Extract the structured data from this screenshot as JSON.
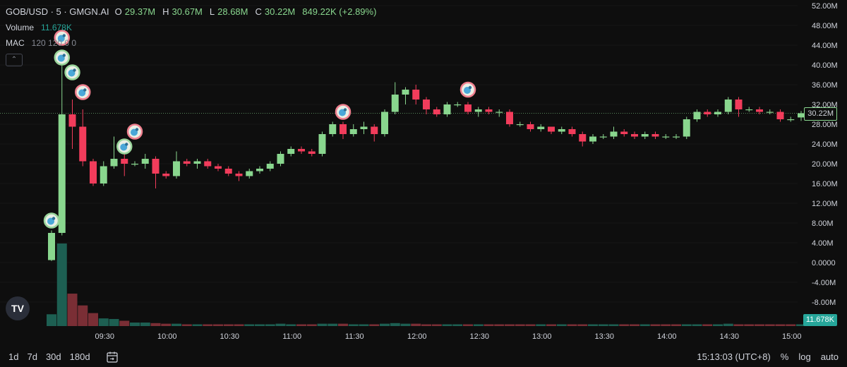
{
  "legend": {
    "symbol": "GOB/USD · 5 · GMGN.AI",
    "o_label": "O",
    "o_value": "29.37M",
    "h_label": "H",
    "h_value": "30.67M",
    "l_label": "L",
    "l_value": "28.68M",
    "c_label": "C",
    "c_value": "30.22M",
    "change": "849.22K (+2.89%)",
    "volume_label": "Volume",
    "volume_value": "11.678K",
    "mac_label": "MAC",
    "mac_value": "120 120 0 0"
  },
  "price_tags": {
    "last_price": "30.22M",
    "last_volume": "11.678K"
  },
  "bottom_bar": {
    "ranges": [
      "1d",
      "7d",
      "30d",
      "180d"
    ],
    "clock": "15:13:03 (UTC+8)",
    "percent": "%",
    "log": "log",
    "auto": "auto"
  },
  "logo_text": "TV",
  "colors": {
    "up": "#89d68e",
    "down": "#f23c5b",
    "vol_up": "#1d5f52",
    "vol_down": "#7a2e35",
    "background": "#0e0e0e"
  },
  "chart_data": {
    "type": "candlestick",
    "symbol": "GOB/USD",
    "interval_minutes": 5,
    "y_unit": "M",
    "ylim": [
      -12,
      52
    ],
    "yticks": [
      -8,
      -4,
      0,
      4,
      8,
      12,
      16,
      20,
      24,
      28,
      32,
      36,
      40,
      44,
      48,
      52
    ],
    "ytick_labels": [
      "-8.00M",
      "-4.00M",
      "0.0000",
      "4.00M",
      "8.00M",
      "12.00M",
      "16.00M",
      "20.00M",
      "24.00M",
      "28.00M",
      "32.00M",
      "36.00M",
      "40.00M",
      "44.00M",
      "48.00M",
      "52.00M"
    ],
    "xticks": [
      "09:30",
      "10:00",
      "10:30",
      "11:00",
      "11:30",
      "12:00",
      "12:30",
      "13:00",
      "13:30",
      "14:00",
      "14:30",
      "15:00"
    ],
    "xtick_index": [
      3,
      9,
      15,
      21,
      27,
      33,
      39,
      45,
      51,
      57,
      63,
      69
    ],
    "last_price_line": 30.22,
    "candles": [
      {
        "o": 0.5,
        "h": 6.5,
        "l": 0.3,
        "c": 6.0
      },
      {
        "o": 6.0,
        "h": 41.0,
        "l": 5.5,
        "c": 30.0
      },
      {
        "o": 30.0,
        "h": 33.0,
        "l": 23.0,
        "c": 27.5
      },
      {
        "o": 27.5,
        "h": 31.0,
        "l": 19.5,
        "c": 20.5
      },
      {
        "o": 20.5,
        "h": 21.0,
        "l": 15.5,
        "c": 16.0
      },
      {
        "o": 16.0,
        "h": 20.5,
        "l": 15.5,
        "c": 19.5
      },
      {
        "o": 19.5,
        "h": 25.5,
        "l": 19.0,
        "c": 21.0
      },
      {
        "o": 21.0,
        "h": 22.5,
        "l": 17.5,
        "c": 20.0
      },
      {
        "o": 20.0,
        "h": 20.5,
        "l": 19.5,
        "c": 20.0
      },
      {
        "o": 20.0,
        "h": 22.0,
        "l": 19.0,
        "c": 21.0
      },
      {
        "o": 21.0,
        "h": 21.5,
        "l": 15.0,
        "c": 18.0
      },
      {
        "o": 18.0,
        "h": 18.5,
        "l": 17.0,
        "c": 17.5
      },
      {
        "o": 17.5,
        "h": 22.5,
        "l": 17.0,
        "c": 20.5
      },
      {
        "o": 20.5,
        "h": 21.0,
        "l": 19.5,
        "c": 20.0
      },
      {
        "o": 20.0,
        "h": 21.0,
        "l": 19.0,
        "c": 20.5
      },
      {
        "o": 20.5,
        "h": 21.0,
        "l": 19.0,
        "c": 19.5
      },
      {
        "o": 19.5,
        "h": 20.0,
        "l": 18.5,
        "c": 19.0
      },
      {
        "o": 19.0,
        "h": 19.5,
        "l": 17.5,
        "c": 18.0
      },
      {
        "o": 18.0,
        "h": 18.5,
        "l": 16.5,
        "c": 17.5
      },
      {
        "o": 17.5,
        "h": 19.0,
        "l": 17.0,
        "c": 18.5
      },
      {
        "o": 18.5,
        "h": 19.5,
        "l": 18.0,
        "c": 19.0
      },
      {
        "o": 19.0,
        "h": 20.5,
        "l": 18.5,
        "c": 20.0
      },
      {
        "o": 20.0,
        "h": 22.5,
        "l": 19.5,
        "c": 22.0
      },
      {
        "o": 22.0,
        "h": 23.5,
        "l": 21.5,
        "c": 23.0
      },
      {
        "o": 23.0,
        "h": 23.5,
        "l": 22.0,
        "c": 22.5
      },
      {
        "o": 22.5,
        "h": 23.0,
        "l": 21.5,
        "c": 22.0
      },
      {
        "o": 22.0,
        "h": 26.5,
        "l": 21.5,
        "c": 26.0
      },
      {
        "o": 26.0,
        "h": 28.5,
        "l": 25.5,
        "c": 28.0
      },
      {
        "o": 28.0,
        "h": 28.5,
        "l": 25.0,
        "c": 26.0
      },
      {
        "o": 26.0,
        "h": 28.0,
        "l": 25.5,
        "c": 27.0
      },
      {
        "o": 27.0,
        "h": 28.5,
        "l": 26.0,
        "c": 27.5
      },
      {
        "o": 27.5,
        "h": 28.0,
        "l": 24.5,
        "c": 26.0
      },
      {
        "o": 26.0,
        "h": 31.0,
        "l": 25.5,
        "c": 30.5
      },
      {
        "o": 30.5,
        "h": 36.5,
        "l": 30.0,
        "c": 34.0
      },
      {
        "o": 34.0,
        "h": 35.5,
        "l": 32.0,
        "c": 35.0
      },
      {
        "o": 35.0,
        "h": 36.0,
        "l": 32.0,
        "c": 33.0
      },
      {
        "o": 33.0,
        "h": 33.5,
        "l": 30.0,
        "c": 31.0
      },
      {
        "o": 31.0,
        "h": 31.5,
        "l": 29.5,
        "c": 30.0
      },
      {
        "o": 30.0,
        "h": 32.5,
        "l": 29.5,
        "c": 32.0
      },
      {
        "o": 32.0,
        "h": 32.5,
        "l": 31.5,
        "c": 32.0
      },
      {
        "o": 32.0,
        "h": 32.5,
        "l": 30.0,
        "c": 30.5
      },
      {
        "o": 30.5,
        "h": 31.5,
        "l": 29.5,
        "c": 31.0
      },
      {
        "o": 31.0,
        "h": 31.5,
        "l": 30.0,
        "c": 30.5
      },
      {
        "o": 30.5,
        "h": 31.0,
        "l": 29.5,
        "c": 30.5
      },
      {
        "o": 30.5,
        "h": 31.0,
        "l": 27.5,
        "c": 28.0
      },
      {
        "o": 28.0,
        "h": 28.5,
        "l": 27.5,
        "c": 28.0
      },
      {
        "o": 28.0,
        "h": 28.5,
        "l": 26.5,
        "c": 27.0
      },
      {
        "o": 27.0,
        "h": 28.0,
        "l": 26.5,
        "c": 27.5
      },
      {
        "o": 27.5,
        "h": 27.5,
        "l": 26.0,
        "c": 26.5
      },
      {
        "o": 26.5,
        "h": 27.5,
        "l": 26.0,
        "c": 27.0
      },
      {
        "o": 27.0,
        "h": 27.5,
        "l": 25.5,
        "c": 26.0
      },
      {
        "o": 26.0,
        "h": 26.5,
        "l": 23.5,
        "c": 24.5
      },
      {
        "o": 24.5,
        "h": 26.0,
        "l": 24.0,
        "c": 25.5
      },
      {
        "o": 25.5,
        "h": 26.0,
        "l": 25.0,
        "c": 25.5
      },
      {
        "o": 25.5,
        "h": 27.5,
        "l": 25.0,
        "c": 26.5
      },
      {
        "o": 26.5,
        "h": 27.0,
        "l": 25.5,
        "c": 26.0
      },
      {
        "o": 26.0,
        "h": 26.5,
        "l": 25.0,
        "c": 25.5
      },
      {
        "o": 25.5,
        "h": 26.5,
        "l": 25.0,
        "c": 26.0
      },
      {
        "o": 26.0,
        "h": 26.5,
        "l": 25.0,
        "c": 25.5
      },
      {
        "o": 25.5,
        "h": 26.0,
        "l": 25.0,
        "c": 25.5
      },
      {
        "o": 25.5,
        "h": 26.0,
        "l": 25.0,
        "c": 25.5
      },
      {
        "o": 25.5,
        "h": 29.5,
        "l": 25.0,
        "c": 29.0
      },
      {
        "o": 29.0,
        "h": 31.0,
        "l": 28.5,
        "c": 30.5
      },
      {
        "o": 30.5,
        "h": 31.0,
        "l": 29.5,
        "c": 30.0
      },
      {
        "o": 30.0,
        "h": 31.0,
        "l": 29.5,
        "c": 30.5
      },
      {
        "o": 30.5,
        "h": 33.5,
        "l": 30.0,
        "c": 33.0
      },
      {
        "o": 33.0,
        "h": 33.5,
        "l": 29.5,
        "c": 31.0
      },
      {
        "o": 31.0,
        "h": 31.5,
        "l": 30.5,
        "c": 31.0
      },
      {
        "o": 31.0,
        "h": 31.5,
        "l": 30.0,
        "c": 30.5
      },
      {
        "o": 30.5,
        "h": 31.0,
        "l": 30.0,
        "c": 30.5
      },
      {
        "o": 30.5,
        "h": 31.0,
        "l": 28.5,
        "c": 29.0
      },
      {
        "o": 29.0,
        "h": 29.5,
        "l": 28.5,
        "c": 29.0
      },
      {
        "o": 29.37,
        "h": 30.67,
        "l": 28.68,
        "c": 30.22
      }
    ],
    "volume": [
      {
        "v": 2,
        "up": true
      },
      {
        "v": 14,
        "up": true
      },
      {
        "v": 5.5,
        "up": false
      },
      {
        "v": 3.5,
        "up": false
      },
      {
        "v": 2.2,
        "up": false
      },
      {
        "v": 1.3,
        "up": true
      },
      {
        "v": 1.2,
        "up": true
      },
      {
        "v": 0.9,
        "up": false
      },
      {
        "v": 0.6,
        "up": true
      },
      {
        "v": 0.6,
        "up": true
      },
      {
        "v": 0.5,
        "up": false
      },
      {
        "v": 0.4,
        "up": false
      },
      {
        "v": 0.4,
        "up": true
      },
      {
        "v": 0.3,
        "up": false
      },
      {
        "v": 0.3,
        "up": true
      },
      {
        "v": 0.3,
        "up": false
      },
      {
        "v": 0.3,
        "up": false
      },
      {
        "v": 0.3,
        "up": false
      },
      {
        "v": 0.3,
        "up": false
      },
      {
        "v": 0.3,
        "up": true
      },
      {
        "v": 0.3,
        "up": true
      },
      {
        "v": 0.3,
        "up": true
      },
      {
        "v": 0.4,
        "up": true
      },
      {
        "v": 0.3,
        "up": true
      },
      {
        "v": 0.3,
        "up": false
      },
      {
        "v": 0.3,
        "up": false
      },
      {
        "v": 0.4,
        "up": true
      },
      {
        "v": 0.4,
        "up": true
      },
      {
        "v": 0.4,
        "up": false
      },
      {
        "v": 0.3,
        "up": true
      },
      {
        "v": 0.3,
        "up": true
      },
      {
        "v": 0.3,
        "up": false
      },
      {
        "v": 0.4,
        "up": true
      },
      {
        "v": 0.5,
        "up": true
      },
      {
        "v": 0.4,
        "up": true
      },
      {
        "v": 0.4,
        "up": false
      },
      {
        "v": 0.3,
        "up": false
      },
      {
        "v": 0.3,
        "up": false
      },
      {
        "v": 0.3,
        "up": true
      },
      {
        "v": 0.3,
        "up": true
      },
      {
        "v": 0.3,
        "up": false
      },
      {
        "v": 0.3,
        "up": true
      },
      {
        "v": 0.3,
        "up": false
      },
      {
        "v": 0.3,
        "up": false
      },
      {
        "v": 0.3,
        "up": false
      },
      {
        "v": 0.3,
        "up": false
      },
      {
        "v": 0.3,
        "up": false
      },
      {
        "v": 0.3,
        "up": true
      },
      {
        "v": 0.3,
        "up": false
      },
      {
        "v": 0.3,
        "up": true
      },
      {
        "v": 0.3,
        "up": false
      },
      {
        "v": 0.3,
        "up": false
      },
      {
        "v": 0.3,
        "up": true
      },
      {
        "v": 0.3,
        "up": true
      },
      {
        "v": 0.3,
        "up": true
      },
      {
        "v": 0.3,
        "up": false
      },
      {
        "v": 0.3,
        "up": false
      },
      {
        "v": 0.3,
        "up": true
      },
      {
        "v": 0.3,
        "up": false
      },
      {
        "v": 0.3,
        "up": false
      },
      {
        "v": 0.3,
        "up": false
      },
      {
        "v": 0.3,
        "up": true
      },
      {
        "v": 0.3,
        "up": true
      },
      {
        "v": 0.3,
        "up": false
      },
      {
        "v": 0.3,
        "up": true
      },
      {
        "v": 0.4,
        "up": true
      },
      {
        "v": 0.3,
        "up": false
      },
      {
        "v": 0.3,
        "up": false
      },
      {
        "v": 0.3,
        "up": false
      },
      {
        "v": 0.3,
        "up": false
      },
      {
        "v": 0.3,
        "up": false
      },
      {
        "v": 0.3,
        "up": false
      },
      {
        "v": 0.3,
        "up": true
      }
    ],
    "markers": [
      {
        "i": 0,
        "price": 8.5,
        "kind": "buy"
      },
      {
        "i": 1,
        "price": 45.5,
        "kind": "sell"
      },
      {
        "i": 1,
        "price": 41.5,
        "kind": "buy"
      },
      {
        "i": 2,
        "price": 38.5,
        "kind": "buy"
      },
      {
        "i": 3,
        "price": 34.5,
        "kind": "sell"
      },
      {
        "i": 7,
        "price": 23.5,
        "kind": "buy"
      },
      {
        "i": 8,
        "price": 26.5,
        "kind": "sell"
      },
      {
        "i": 28,
        "price": 30.5,
        "kind": "sell"
      },
      {
        "i": 40,
        "price": 35.0,
        "kind": "sell"
      }
    ]
  }
}
